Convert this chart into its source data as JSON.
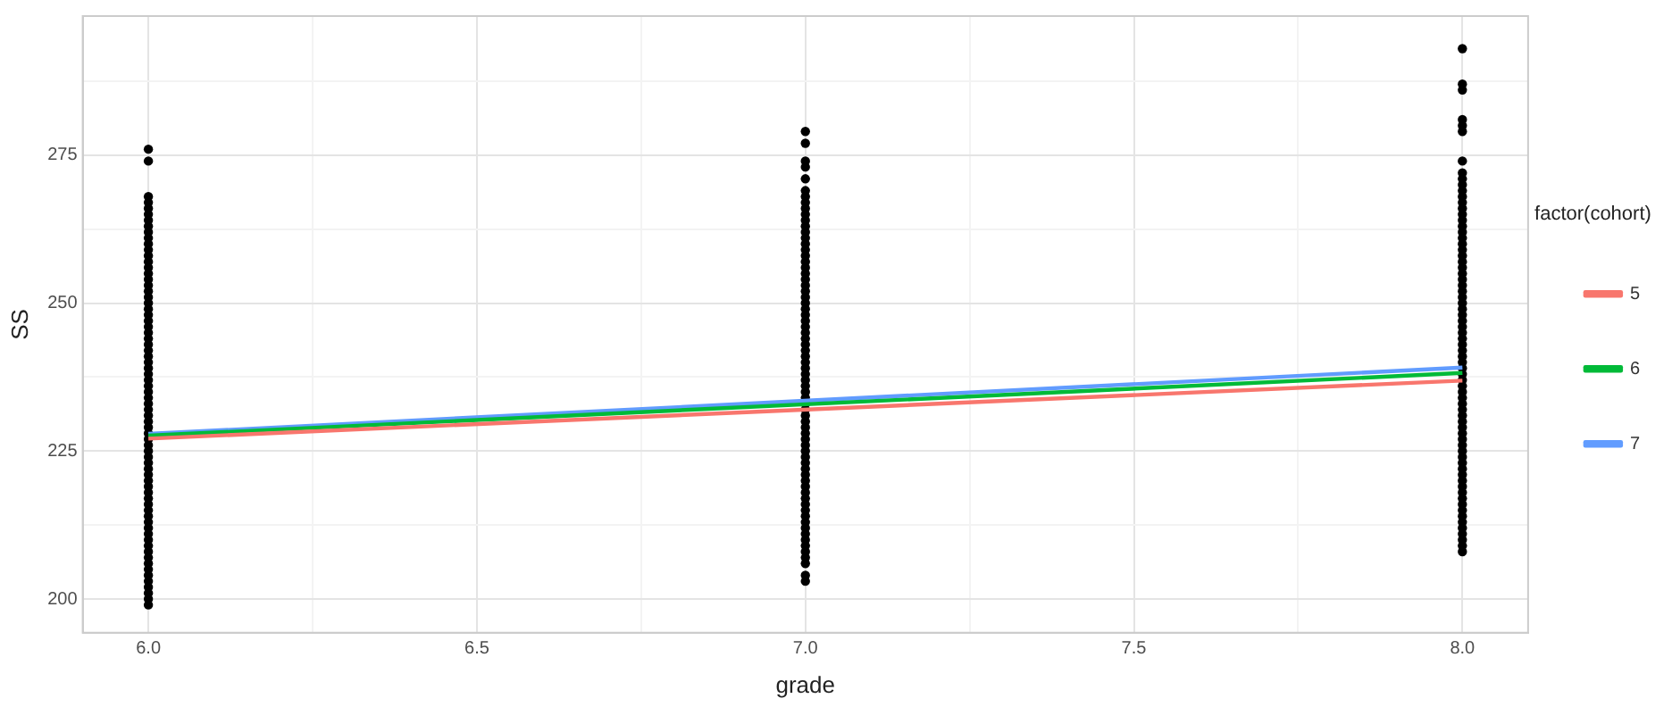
{
  "chart_data": {
    "type": "scatter",
    "xlabel": "grade",
    "ylabel": "SS",
    "legend_title": "factor(cohort)",
    "legend": "right",
    "grid": true,
    "xlim": [
      5.9,
      8.1
    ],
    "xticks": [
      {
        "value": 6,
        "label": "6.0"
      },
      {
        "value": 6.25,
        "label": null
      },
      {
        "value": 6.5,
        "label": "6.5"
      },
      {
        "value": 6.75,
        "label": null
      },
      {
        "value": 7,
        "label": "7.0"
      },
      {
        "value": 7.25,
        "label": null
      },
      {
        "value": 7.5,
        "label": "7.5"
      },
      {
        "value": 7.75,
        "label": null
      },
      {
        "value": 8,
        "label": "8.0"
      }
    ],
    "ylim": [
      194.3,
      298.5
    ],
    "yticks": [
      200,
      {
        "value": 212.5,
        "label": null
      },
      225,
      {
        "value": 237.5,
        "label": null
      },
      250,
      {
        "value": 262.5,
        "label": null
      },
      275,
      {
        "value": 287.5,
        "label": null
      }
    ],
    "series": [
      {
        "type": "scatter",
        "color": "#000000",
        "marker": "circle",
        "x": [
          6,
          6,
          6,
          6,
          6,
          6,
          6,
          6,
          6,
          6,
          6,
          6,
          6,
          6,
          6,
          6,
          6,
          6,
          6,
          6,
          6,
          6,
          6,
          6,
          6,
          6,
          6,
          6,
          6,
          6,
          6,
          6,
          6,
          6,
          6,
          6,
          6,
          6,
          6,
          6,
          6,
          6,
          6,
          6,
          6,
          6,
          6,
          6,
          6,
          6,
          6,
          6,
          6,
          6,
          6,
          6,
          6,
          6,
          6,
          6,
          6,
          6,
          6,
          6,
          6,
          6,
          6,
          6,
          6,
          6,
          6,
          6,
          7,
          7,
          7,
          7,
          7,
          7,
          7,
          7,
          7,
          7,
          7,
          7,
          7,
          7,
          7,
          7,
          7,
          7,
          7,
          7,
          7,
          7,
          7,
          7,
          7,
          7,
          7,
          7,
          7,
          7,
          7,
          7,
          7,
          7,
          7,
          7,
          7,
          7,
          7,
          7,
          7,
          7,
          7,
          7,
          7,
          7,
          7,
          7,
          7,
          7,
          7,
          7,
          7,
          7,
          7,
          7,
          7,
          7,
          7,
          7,
          7,
          7,
          7,
          7,
          7,
          7,
          7,
          7,
          7,
          7,
          7,
          8,
          8,
          8,
          8,
          8,
          8,
          8,
          8,
          8,
          8,
          8,
          8,
          8,
          8,
          8,
          8,
          8,
          8,
          8,
          8,
          8,
          8,
          8,
          8,
          8,
          8,
          8,
          8,
          8,
          8,
          8,
          8,
          8,
          8,
          8,
          8,
          8,
          8,
          8,
          8,
          8,
          8,
          8,
          8,
          8,
          8,
          8,
          8,
          8,
          8,
          8,
          8,
          8,
          8,
          8,
          8,
          8,
          8,
          8,
          8,
          8,
          8,
          8,
          8,
          8,
          8,
          8,
          8,
          8,
          8,
          8,
          8
        ],
        "values": [
          199,
          200,
          201,
          202,
          203,
          204,
          205,
          206,
          207,
          208,
          209,
          210,
          211,
          212,
          213,
          214,
          215,
          216,
          217,
          218,
          219,
          220,
          221,
          222,
          223,
          224,
          225,
          226,
          227,
          228,
          229,
          230,
          231,
          232,
          233,
          234,
          235,
          236,
          237,
          238,
          239,
          240,
          241,
          242,
          243,
          244,
          245,
          246,
          247,
          248,
          249,
          250,
          251,
          252,
          253,
          254,
          255,
          256,
          257,
          258,
          259,
          260,
          261,
          262,
          263,
          264,
          265,
          266,
          267,
          268,
          274,
          276,
          203,
          204,
          206,
          207,
          208,
          209,
          210,
          211,
          212,
          213,
          214,
          215,
          216,
          217,
          218,
          219,
          220,
          221,
          222,
          223,
          224,
          225,
          226,
          227,
          228,
          229,
          230,
          231,
          232,
          233,
          234,
          235,
          236,
          237,
          238,
          239,
          240,
          241,
          242,
          243,
          244,
          245,
          246,
          247,
          248,
          249,
          250,
          251,
          252,
          253,
          254,
          255,
          256,
          257,
          258,
          259,
          260,
          261,
          262,
          263,
          264,
          265,
          266,
          267,
          268,
          269,
          271,
          273,
          274,
          277,
          279,
          208,
          209,
          210,
          211,
          212,
          213,
          214,
          215,
          216,
          217,
          218,
          219,
          220,
          221,
          222,
          223,
          224,
          225,
          226,
          227,
          228,
          229,
          230,
          231,
          232,
          233,
          234,
          235,
          236,
          237,
          238,
          239,
          240,
          241,
          242,
          243,
          244,
          245,
          246,
          247,
          248,
          249,
          250,
          251,
          252,
          253,
          254,
          255,
          256,
          257,
          258,
          259,
          260,
          261,
          262,
          263,
          264,
          265,
          266,
          267,
          268,
          269,
          270,
          271,
          272,
          274,
          279,
          280,
          281,
          286,
          287,
          293
        ]
      },
      {
        "type": "line",
        "name": "5",
        "color": "#f8766d",
        "x": [
          6,
          8
        ],
        "values": [
          227.1,
          236.9
        ]
      },
      {
        "type": "line",
        "name": "6",
        "color": "#00ba38",
        "x": [
          6,
          8
        ],
        "values": [
          227.6,
          238.2
        ]
      },
      {
        "type": "line",
        "name": "7",
        "color": "#619cff",
        "x": [
          6,
          8
        ],
        "values": [
          227.9,
          239.1
        ]
      }
    ]
  }
}
